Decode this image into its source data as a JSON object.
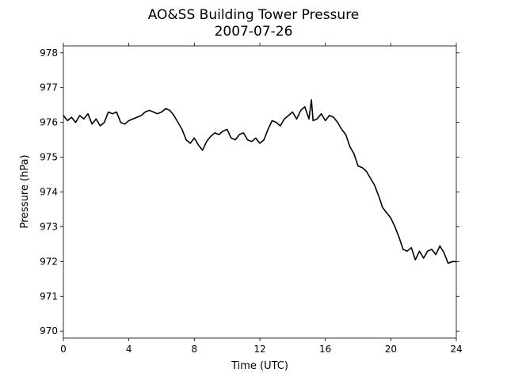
{
  "chart_data": {
    "type": "line",
    "title": "AO&SS Building Tower Pressure",
    "subtitle": "2007-07-26",
    "xlabel": "Time (UTC)",
    "ylabel": "Pressure (hPa)",
    "xlim": [
      0,
      24
    ],
    "ylim": [
      969.8,
      978.2
    ],
    "xticks": [
      0,
      4,
      8,
      12,
      16,
      20,
      24
    ],
    "yticks": [
      970,
      971,
      972,
      973,
      974,
      975,
      976,
      977,
      978
    ],
    "grid": false,
    "line_color": "#000000",
    "series": [
      {
        "x": [
          0,
          0.25,
          0.5,
          0.75,
          1.0,
          1.25,
          1.5,
          1.75,
          2.0,
          2.25,
          2.5,
          2.75,
          3.0,
          3.25,
          3.5,
          3.75,
          4.0,
          4.25,
          4.5,
          4.75,
          5.0,
          5.25,
          5.5,
          5.75,
          6.0,
          6.25,
          6.5,
          6.75,
          7.0,
          7.25,
          7.5,
          7.75,
          8.0,
          8.25,
          8.5,
          8.75,
          9.0,
          9.25,
          9.5,
          9.75,
          10.0,
          10.25,
          10.5,
          10.75,
          11.0,
          11.25,
          11.5,
          11.75,
          12.0,
          12.25,
          12.5,
          12.75,
          13.0,
          13.25,
          13.5,
          13.75,
          14.0,
          14.25,
          14.5,
          14.75,
          15.0,
          15.15,
          15.25,
          15.5,
          15.75,
          16.0,
          16.25,
          16.5,
          16.75,
          17.0,
          17.25,
          17.5,
          17.75,
          18.0,
          18.25,
          18.5,
          18.75,
          19.0,
          19.25,
          19.5,
          19.75,
          20.0,
          20.25,
          20.5,
          20.75,
          21.0,
          21.25,
          21.5,
          21.75,
          22.0,
          22.25,
          22.5,
          22.75,
          23.0,
          23.25,
          23.5,
          23.75,
          24.0
        ],
        "y": [
          976.2,
          976.05,
          976.15,
          976.0,
          976.2,
          976.1,
          976.25,
          975.95,
          976.1,
          975.9,
          976.0,
          976.3,
          976.25,
          976.3,
          976.0,
          975.95,
          976.05,
          976.1,
          976.15,
          976.2,
          976.3,
          976.35,
          976.3,
          976.25,
          976.3,
          976.4,
          976.35,
          976.2,
          976.0,
          975.8,
          975.5,
          975.4,
          975.55,
          975.35,
          975.2,
          975.45,
          975.6,
          975.7,
          975.65,
          975.75,
          975.8,
          975.55,
          975.5,
          975.65,
          975.7,
          975.5,
          975.45,
          975.55,
          975.4,
          975.5,
          975.8,
          976.05,
          976.0,
          975.9,
          976.1,
          976.2,
          976.3,
          976.1,
          976.35,
          976.45,
          976.1,
          976.65,
          976.05,
          976.1,
          976.25,
          976.05,
          976.2,
          976.15,
          976.0,
          975.8,
          975.65,
          975.3,
          975.1,
          974.75,
          974.7,
          974.6,
          974.4,
          974.2,
          973.9,
          973.55,
          973.4,
          973.25,
          973.0,
          972.7,
          972.35,
          972.3,
          972.4,
          972.05,
          972.3,
          972.1,
          972.3,
          972.35,
          972.2,
          972.45,
          972.25,
          971.95,
          972.0,
          972.0
        ]
      }
    ]
  }
}
